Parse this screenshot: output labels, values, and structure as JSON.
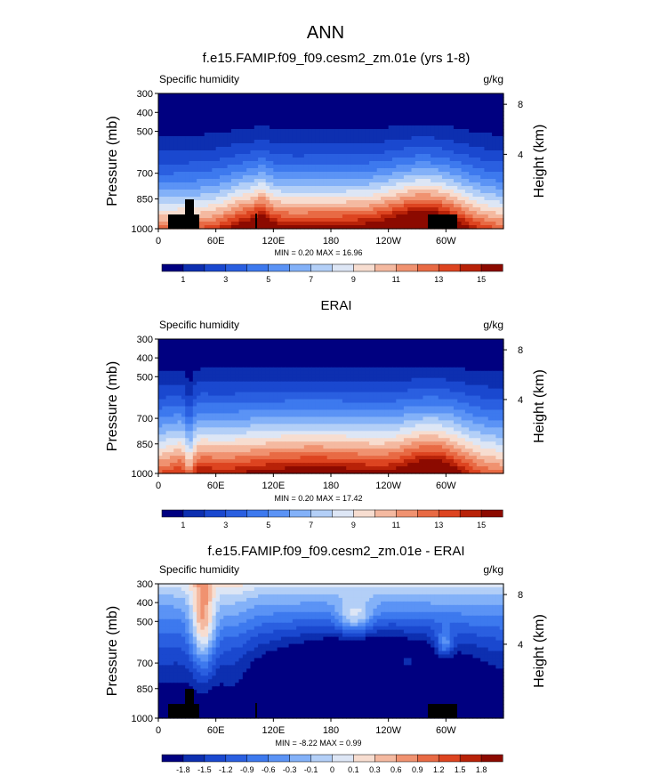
{
  "figure_title": "ANN",
  "chart_data": [
    {
      "type": "heatmap",
      "title": "f.e15.FAMIP.f09_f09.cesm2_zm.01e (yrs 1-8)",
      "left_label": "Specific humidity",
      "right_label": "g/kg",
      "ylabel": "Pressure (mb)",
      "ylabel_right": "Height (km)",
      "y_ticks": [
        "300",
        "400",
        "500",
        "700",
        "850",
        "1000"
      ],
      "y_right_ticks": [
        "8",
        "4"
      ],
      "x_ticks": [
        "0",
        "60E",
        "120E",
        "180",
        "120W",
        "60W"
      ],
      "x_range": [
        0,
        360
      ],
      "stats": "MIN =  0.20  MAX =  16.96",
      "colorbar_labels": [
        "1",
        "3",
        "5",
        "7",
        "9",
        "11",
        "13",
        "15"
      ],
      "colors": [
        "#000080",
        "#0d2fb0",
        "#1a48cf",
        "#2a5fe0",
        "#3d79ee",
        "#5b93f5",
        "#83b1f8",
        "#b3cff7",
        "#dde6f5",
        "#f7ddd0",
        "#f4b9a0",
        "#f09270",
        "#e86a44",
        "#dd4420",
        "#b82208",
        "#8c0a00"
      ]
    },
    {
      "type": "heatmap",
      "title": "ERAI",
      "left_label": "Specific humidity",
      "right_label": "g/kg",
      "ylabel": "Pressure (mb)",
      "ylabel_right": "Height (km)",
      "y_ticks": [
        "300",
        "400",
        "500",
        "700",
        "850",
        "1000"
      ],
      "y_right_ticks": [
        "8",
        "4"
      ],
      "x_ticks": [
        "0",
        "60E",
        "120E",
        "180",
        "120W",
        "60W"
      ],
      "x_range": [
        0,
        360
      ],
      "stats": "MIN =  0.20  MAX =  17.42",
      "colorbar_labels": [
        "1",
        "3",
        "5",
        "7",
        "9",
        "11",
        "13",
        "15"
      ],
      "colors": [
        "#000080",
        "#0d2fb0",
        "#1a48cf",
        "#2a5fe0",
        "#3d79ee",
        "#5b93f5",
        "#83b1f8",
        "#b3cff7",
        "#dde6f5",
        "#f7ddd0",
        "#f4b9a0",
        "#f09270",
        "#e86a44",
        "#dd4420",
        "#b82208",
        "#8c0a00"
      ]
    },
    {
      "type": "heatmap",
      "title": "f.e15.FAMIP.f09_f09.cesm2_zm.01e - ERAI",
      "left_label": "Specific humidity",
      "right_label": "g/kg",
      "ylabel": "Pressure (mb)",
      "ylabel_right": "Height (km)",
      "y_ticks": [
        "300",
        "400",
        "500",
        "700",
        "850",
        "1000"
      ],
      "y_right_ticks": [
        "8",
        "4"
      ],
      "x_ticks": [
        "0",
        "60E",
        "120E",
        "180",
        "120W",
        "60W"
      ],
      "x_range": [
        0,
        360
      ],
      "stats": "MIN = -8.22  MAX =  0.99",
      "colorbar_labels": [
        "-1.8",
        "-1.5",
        "-1.2",
        "-0.9",
        "-0.6",
        "-0.3",
        "-0.1",
        "0",
        "0.1",
        "0.3",
        "0.6",
        "0.9",
        "1.2",
        "1.5",
        "1.8"
      ],
      "colors": [
        "#000080",
        "#0d2fb0",
        "#1a48cf",
        "#2a5fe0",
        "#3d79ee",
        "#5b93f5",
        "#83b1f8",
        "#b3cff7",
        "#dde6f5",
        "#f7ddd0",
        "#f4b9a0",
        "#f09270",
        "#e86a44",
        "#dd4420",
        "#b82208",
        "#8c0a00"
      ]
    }
  ]
}
